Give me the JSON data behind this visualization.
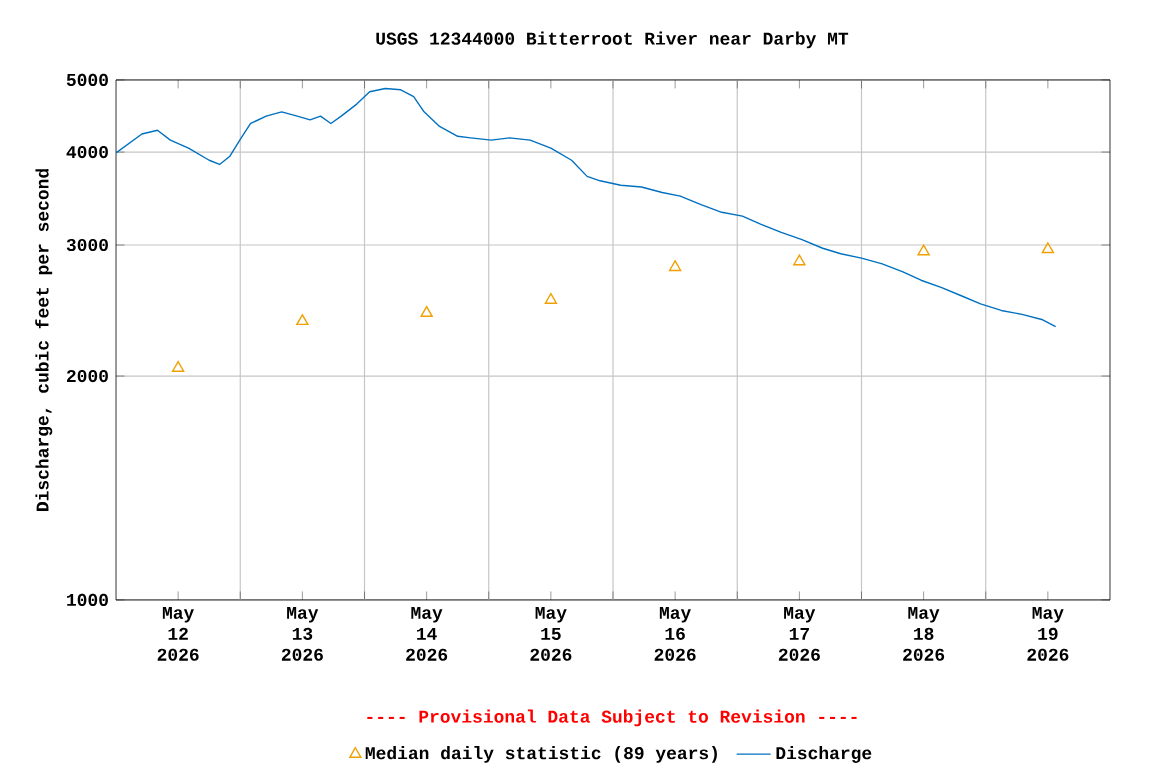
{
  "chart_data": {
    "type": "line",
    "title": "USGS 12344000 Bitterroot River near Darby MT",
    "ylabel": "Discharge, cubic feet per second",
    "annotations": [
      "---- Provisional Data Subject to Revision ----"
    ],
    "series": [
      {
        "name": "Median daily statistic (89 years)",
        "type": "scatter",
        "marker": "triangle",
        "color": "#f0a000",
        "x": [
          "2026-05-12T12:00",
          "2026-05-13T12:00",
          "2026-05-14T12:00",
          "2026-05-15T12:00",
          "2026-05-16T12:00",
          "2026-05-17T12:00",
          "2026-05-18T12:00",
          "2026-05-19T12:00"
        ],
        "values": [
          2050,
          2370,
          2430,
          2530,
          2800,
          2850,
          2940,
          2960
        ]
      },
      {
        "name": "Discharge",
        "marker": "none",
        "color": "#0070c0",
        "x": [
          "2026-05-12T00:00",
          "2026-05-12T05:00",
          "2026-05-12T08:00",
          "2026-05-12T10:30",
          "2026-05-12T14:00",
          "2026-05-12T18:00",
          "2026-05-12T20:00",
          "2026-05-12T22:00",
          "2026-05-13T00:00",
          "2026-05-13T02:00",
          "2026-05-13T05:00",
          "2026-05-13T08:00",
          "2026-05-13T11:00",
          "2026-05-13T13:30",
          "2026-05-13T15:30",
          "2026-05-13T17:30",
          "2026-05-13T19:30",
          "2026-05-13T22:30",
          "2026-05-14T01:00",
          "2026-05-14T04:00",
          "2026-05-14T07:00",
          "2026-05-14T09:30",
          "2026-05-14T11:30",
          "2026-05-14T14:30",
          "2026-05-14T18:00",
          "2026-05-14T20:30",
          "2026-05-15T00:30",
          "2026-05-15T04:00",
          "2026-05-15T08:00",
          "2026-05-15T12:00",
          "2026-05-15T16:00",
          "2026-05-15T19:00",
          "2026-05-15T21:30",
          "2026-05-16T01:30",
          "2026-05-16T05:30",
          "2026-05-16T09:30",
          "2026-05-16T13:00",
          "2026-05-16T17:00",
          "2026-05-16T21:00",
          "2026-05-17T01:00",
          "2026-05-17T04:30",
          "2026-05-17T08:30",
          "2026-05-17T12:30",
          "2026-05-17T16:30",
          "2026-05-17T20:00",
          "2026-05-18T00:00",
          "2026-05-18T04:00",
          "2026-05-18T08:00",
          "2026-05-18T11:30",
          "2026-05-18T15:30",
          "2026-05-18T19:30",
          "2026-05-18T23:00",
          "2026-05-19T03:00",
          "2026-05-19T07:00",
          "2026-05-19T11:00",
          "2026-05-19T13:30"
        ],
        "values": [
          3990,
          4230,
          4280,
          4150,
          4050,
          3900,
          3850,
          3950,
          4160,
          4370,
          4470,
          4530,
          4470,
          4420,
          4470,
          4370,
          4470,
          4640,
          4820,
          4870,
          4850,
          4750,
          4530,
          4330,
          4200,
          4180,
          4150,
          4180,
          4150,
          4050,
          3900,
          3710,
          3660,
          3610,
          3590,
          3530,
          3490,
          3400,
          3320,
          3280,
          3200,
          3120,
          3050,
          2970,
          2920,
          2880,
          2830,
          2760,
          2690,
          2630,
          2560,
          2500,
          2450,
          2420,
          2380,
          2330
        ]
      }
    ],
    "xlim": [
      "2026-05-12T00:00",
      "2026-05-20T00:00"
    ],
    "xticks": [
      {
        "value": "2026-05-12T12:00",
        "label": "May 12 2026"
      },
      {
        "value": "2026-05-13T12:00",
        "label": "May 13 2026"
      },
      {
        "value": "2026-05-14T12:00",
        "label": "May 14 2026"
      },
      {
        "value": "2026-05-15T12:00",
        "label": "May 15 2026"
      },
      {
        "value": "2026-05-16T12:00",
        "label": "May 16 2026"
      },
      {
        "value": "2026-05-17T12:00",
        "label": "May 17 2026"
      },
      {
        "value": "2026-05-18T12:00",
        "label": "May 18 2026"
      },
      {
        "value": "2026-05-19T12:00",
        "label": "May 19 2026"
      },
      {
        "value": "2026-05-13T00:00",
        "label": null
      },
      {
        "value": "2026-05-14T00:00",
        "label": null
      },
      {
        "value": "2026-05-15T00:00",
        "label": null
      },
      {
        "value": "2026-05-16T00:00",
        "label": null
      },
      {
        "value": "2026-05-17T00:00",
        "label": null
      },
      {
        "value": "2026-05-18T00:00",
        "label": null
      },
      {
        "value": "2026-05-19T00:00",
        "label": null
      }
    ],
    "ylim": [
      1000,
      5000
    ],
    "yticks": [
      1000,
      2000,
      3000,
      4000,
      5000
    ],
    "log": "y",
    "grid": true,
    "legend": "bottom"
  }
}
